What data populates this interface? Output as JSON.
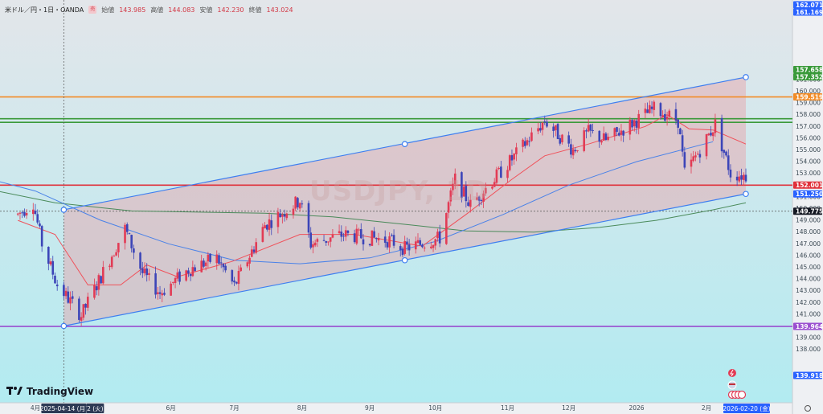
{
  "header": {
    "symbol": "米ドル／円・1日・OANDA",
    "badge": "売",
    "open_label": "始値",
    "open": "143.985",
    "high_label": "高値",
    "high": "144.083",
    "low_label": "安値",
    "low": "142.230",
    "close_label": "終値",
    "close": "143.024"
  },
  "watermark": "USDJPY, 1D",
  "logo_text": "TradingView",
  "colors": {
    "background_top": "#e3e6ea",
    "background_bottom": "#b2ebf1",
    "up_candle": "#e23b55",
    "down_candle": "#3c45b8",
    "channel_line": "#3d7ef0",
    "channel_fill": "#e9a0a6",
    "ma_short": "#f0515a",
    "ma_mid": "#4a82e8",
    "ma_long": "#4a8a5a",
    "level_orange": "#f28c28",
    "level_green": "#3a9a3a",
    "level_red": "#e0303a",
    "level_purple": "#9a4fd0",
    "label_blue": "#2962ff"
  },
  "chart_data": {
    "type": "candlestick",
    "x_start": "2025-04-01",
    "x_end": "2026-02-20",
    "ylim": [
      137.7,
      162.2
    ],
    "y_ticks": [
      138.0,
      139.0,
      140.0,
      141.0,
      142.0,
      143.0,
      144.0,
      145.0,
      146.0,
      147.0,
      148.0,
      149.0,
      150.0,
      151.0,
      152.0,
      153.0,
      154.0,
      155.0,
      156.0,
      157.0,
      158.0,
      159.0,
      160.0,
      161.0
    ],
    "x_ticks": [
      {
        "label": "4月",
        "date": "2025-04-01"
      },
      {
        "label": "6月",
        "date": "2025-06-02"
      },
      {
        "label": "7月",
        "date": "2025-07-01"
      },
      {
        "label": "8月",
        "date": "2025-08-01"
      },
      {
        "label": "9月",
        "date": "2025-09-01"
      },
      {
        "label": "10月",
        "date": "2025-10-01"
      },
      {
        "label": "11月",
        "date": "2025-11-03"
      },
      {
        "label": "12月",
        "date": "2025-12-01"
      },
      {
        "label": "2026",
        "date": "2026-01-01"
      },
      {
        "label": "2月",
        "date": "2026-02-02"
      }
    ],
    "crosshair_date_label": "2025-04-14 (月)",
    "crosshair_price": 149.775,
    "cursor_date_label": "2026-02-20 (金)",
    "partial_date_label": "2 (火)",
    "price_labels": [
      {
        "value": 162.071,
        "kind": "top"
      },
      {
        "value": 161.169,
        "kind": "channel"
      },
      {
        "value": 159.519,
        "kind": "orange"
      },
      {
        "value": 157.658,
        "kind": "green"
      },
      {
        "value": 157.352,
        "kind": "green"
      },
      {
        "value": 152.001,
        "kind": "red"
      },
      {
        "value": 151.25,
        "kind": "channel"
      },
      {
        "value": 149.775,
        "kind": "crosshair"
      },
      {
        "value": 139.964,
        "kind": "purple"
      },
      {
        "value": 139.918,
        "kind": "channel"
      }
    ],
    "horizontal_levels": [
      {
        "value": 159.519,
        "kind": "orange"
      },
      {
        "value": 157.658,
        "kind": "green"
      },
      {
        "value": 157.352,
        "kind": "green"
      },
      {
        "value": 152.001,
        "kind": "red"
      },
      {
        "value": 139.964,
        "kind": "purple"
      }
    ],
    "channel": {
      "upper": [
        {
          "date": "2025-04-14",
          "value": 149.9
        },
        {
          "date": "2026-02-20",
          "value": 161.2
        }
      ],
      "lower": [
        {
          "date": "2025-04-14",
          "value": 140.0
        },
        {
          "date": "2026-02-20",
          "value": 151.25
        }
      ],
      "midpoints": [
        {
          "date": "2025-09-17",
          "value": 155.5
        },
        {
          "date": "2025-09-17",
          "value": 145.6
        }
      ]
    },
    "candle_path": [
      {
        "date": "2025-03-24",
        "value": 149.5
      },
      {
        "date": "2025-03-31",
        "value": 150.5
      },
      {
        "date": "2025-04-04",
        "value": 147.0
      },
      {
        "date": "2025-04-11",
        "value": 143.5
      },
      {
        "date": "2025-04-22",
        "value": 140.9
      },
      {
        "date": "2025-05-12",
        "value": 148.3
      },
      {
        "date": "2025-05-20",
        "value": 144.5
      },
      {
        "date": "2025-05-28",
        "value": 142.8
      },
      {
        "date": "2025-06-10",
        "value": 144.8
      },
      {
        "date": "2025-06-23",
        "value": 145.8
      },
      {
        "date": "2025-07-01",
        "value": 143.4
      },
      {
        "date": "2025-07-15",
        "value": 148.6
      },
      {
        "date": "2025-07-31",
        "value": 150.7
      },
      {
        "date": "2025-08-05",
        "value": 147.0
      },
      {
        "date": "2025-08-20",
        "value": 147.8
      },
      {
        "date": "2025-09-10",
        "value": 147.3
      },
      {
        "date": "2025-09-17",
        "value": 146.6
      },
      {
        "date": "2025-10-03",
        "value": 147.5
      },
      {
        "date": "2025-10-10",
        "value": 152.5
      },
      {
        "date": "2025-10-17",
        "value": 150.3
      },
      {
        "date": "2025-11-04",
        "value": 154.0
      },
      {
        "date": "2025-11-20",
        "value": 157.5
      },
      {
        "date": "2025-12-03",
        "value": 155.0
      },
      {
        "date": "2025-12-10",
        "value": 156.5
      },
      {
        "date": "2025-12-18",
        "value": 155.8
      },
      {
        "date": "2026-01-09",
        "value": 158.5
      },
      {
        "date": "2026-01-15",
        "value": 158.0
      },
      {
        "date": "2026-01-20",
        "value": 157.5
      },
      {
        "date": "2026-01-23",
        "value": 153.0
      },
      {
        "date": "2026-01-30",
        "value": 155.0
      },
      {
        "date": "2026-02-06",
        "value": 157.2
      },
      {
        "date": "2026-02-13",
        "value": 153.0
      },
      {
        "date": "2026-02-20",
        "value": 152.8
      }
    ],
    "ma_short_path": [
      {
        "date": "2025-03-24",
        "value": 149.0
      },
      {
        "date": "2025-04-10",
        "value": 147.8
      },
      {
        "date": "2025-04-25",
        "value": 143.5
      },
      {
        "date": "2025-05-10",
        "value": 143.5
      },
      {
        "date": "2025-05-22",
        "value": 145.2
      },
      {
        "date": "2025-06-05",
        "value": 144.2
      },
      {
        "date": "2025-06-30",
        "value": 145.5
      },
      {
        "date": "2025-07-31",
        "value": 147.8
      },
      {
        "date": "2025-08-25",
        "value": 147.8
      },
      {
        "date": "2025-09-25",
        "value": 146.8
      },
      {
        "date": "2025-10-15",
        "value": 149.5
      },
      {
        "date": "2025-11-05",
        "value": 152.5
      },
      {
        "date": "2025-11-20",
        "value": 154.5
      },
      {
        "date": "2025-12-10",
        "value": 155.5
      },
      {
        "date": "2026-01-05",
        "value": 157.0
      },
      {
        "date": "2026-01-15",
        "value": 158.0
      },
      {
        "date": "2026-01-25",
        "value": 156.8
      },
      {
        "date": "2026-02-05",
        "value": 156.7
      },
      {
        "date": "2026-02-20",
        "value": 155.5
      }
    ],
    "ma_mid_path": [
      {
        "date": "2025-03-01",
        "value": 153.0
      },
      {
        "date": "2025-04-01",
        "value": 151.5
      },
      {
        "date": "2025-05-01",
        "value": 149.0
      },
      {
        "date": "2025-06-01",
        "value": 147.0
      },
      {
        "date": "2025-07-01",
        "value": 145.6
      },
      {
        "date": "2025-07-31",
        "value": 145.3
      },
      {
        "date": "2025-09-01",
        "value": 145.8
      },
      {
        "date": "2025-10-01",
        "value": 147.2
      },
      {
        "date": "2025-11-01",
        "value": 149.5
      },
      {
        "date": "2025-12-01",
        "value": 152.0
      },
      {
        "date": "2026-01-01",
        "value": 154.0
      },
      {
        "date": "2026-02-05",
        "value": 155.7
      }
    ],
    "ma_long_path": [
      {
        "date": "2025-03-01",
        "value": 152.0
      },
      {
        "date": "2025-04-10",
        "value": 150.5
      },
      {
        "date": "2025-05-15",
        "value": 149.8
      },
      {
        "date": "2025-06-15",
        "value": 149.7
      },
      {
        "date": "2025-07-15",
        "value": 149.6
      },
      {
        "date": "2025-08-15",
        "value": 149.3
      },
      {
        "date": "2025-09-15",
        "value": 148.7
      },
      {
        "date": "2025-10-15",
        "value": 148.1
      },
      {
        "date": "2025-11-15",
        "value": 148.0
      },
      {
        "date": "2025-12-15",
        "value": 148.4
      },
      {
        "date": "2026-01-10",
        "value": 149.0
      },
      {
        "date": "2026-02-05",
        "value": 149.9
      },
      {
        "date": "2026-02-20",
        "value": 150.5
      }
    ]
  }
}
